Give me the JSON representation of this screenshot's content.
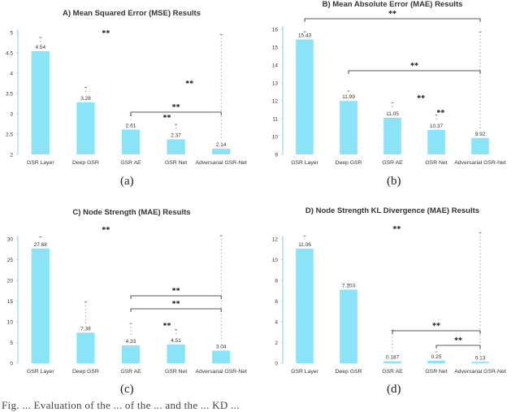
{
  "panel_captions": [
    "(a)",
    "(b)",
    "(c)",
    "(d)"
  ],
  "bottom_text": "Fig. ... Evaluation of the ... of the ... and the ... KD ...",
  "colors": {
    "bar": "#8ae3f7",
    "axis": "#7dd6f1",
    "text": "#333333",
    "errorbar": "#777777"
  },
  "chart_data": [
    {
      "type": "bar",
      "title": "A) Mean Squared Error (MSE) Results",
      "categories": [
        "GSR Layer",
        "Deep GSR",
        "GSR AE",
        "GSR Net",
        "Adversarial GSR-Net"
      ],
      "values": [
        4.54,
        3.28,
        2.61,
        2.37,
        2.14
      ],
      "value_labels": [
        "4.54",
        "3.28",
        "2.61",
        "2.37",
        "2.14"
      ],
      "ylim": [
        2,
        5
      ],
      "yticks": [
        "2",
        "2.5",
        "3",
        "3.5",
        "4",
        "4.5",
        "5"
      ],
      "error_tops": [
        4.88,
        3.65,
        2.96,
        2.74,
        4.95
      ],
      "significance": [
        {
          "label": "**",
          "from": 2,
          "to": 4,
          "bracket": true
        },
        {
          "label": "**",
          "at": 3.3,
          "bracket": false
        },
        {
          "label": "**",
          "at": 3.8,
          "bracket": false
        },
        {
          "label": "**",
          "at": 1.95,
          "bracket": false
        }
      ]
    },
    {
      "type": "bar",
      "title": "B) Mean Absolute Error (MAE) Results",
      "categories": [
        "GSR Layer",
        "Deep GSR",
        "GSR AE",
        "GSR Net",
        "Adversarial GSR-Net"
      ],
      "values": [
        15.43,
        11.99,
        11.05,
        10.37,
        9.92
      ],
      "value_labels": [
        "15.43",
        "11.99",
        "11.05",
        "10.37",
        "9.92"
      ],
      "ylim": [
        9,
        16
      ],
      "yticks": [
        "9",
        "10",
        "11",
        "12",
        "13",
        "14",
        "15",
        "16"
      ],
      "error_tops": [
        15.85,
        12.55,
        11.9,
        11.2,
        15.85
      ],
      "significance": [
        {
          "label": "**",
          "from": 0,
          "to": 4,
          "bracket": true
        },
        {
          "label": "**",
          "from": 1,
          "to": 4,
          "bracket": true
        },
        {
          "label": "**",
          "at": 3.15,
          "bracket": false
        },
        {
          "label": "**",
          "at": 3.6,
          "bracket": false
        }
      ]
    },
    {
      "type": "bar",
      "title": "C) Node Strength (MAE) Results",
      "categories": [
        "GSR Layer",
        "Deep GSR",
        "GSR AE",
        "GSR Net",
        "Adversarial GSR-Net"
      ],
      "values": [
        27.68,
        7.38,
        4.33,
        4.51,
        3.04
      ],
      "value_labels": [
        "27.68",
        "7.38",
        "4.33",
        "4.51",
        "3.04"
      ],
      "ylim": [
        0,
        30
      ],
      "yticks": [
        "0",
        "5",
        "10",
        "15",
        "20",
        "25",
        "30"
      ],
      "error_tops": [
        30.5,
        14.8,
        9.6,
        8.1,
        30.8
      ],
      "significance": [
        {
          "label": "**",
          "from": 2,
          "to": 4,
          "bracket": true
        },
        {
          "label": "**",
          "from": 2,
          "to": 4,
          "bracket": true
        },
        {
          "label": "**",
          "at": 3.3,
          "bracket": false
        },
        {
          "label": "**",
          "at": 1.95,
          "bracket": false
        }
      ]
    },
    {
      "type": "bar",
      "title": "D) Node Strength KL Divergence (MAE) Results",
      "categories": [
        "GSR Layer",
        "Deep GSR",
        "GSR AE",
        "GSR Net",
        "Adversarial GSR-Net"
      ],
      "values": [
        11.06,
        7.103,
        0.187,
        0.25,
        0.13
      ],
      "value_labels": [
        "11.06",
        "7.103",
        "0.187",
        "0.25",
        "0.13"
      ],
      "ylim": [
        0,
        12
      ],
      "yticks": [
        "0",
        "2",
        "4",
        "6",
        "8",
        "10",
        "12"
      ],
      "error_tops": [
        12.3,
        7.6,
        3.2,
        1.1,
        12.6
      ],
      "significance": [
        {
          "label": "**",
          "from": 2,
          "to": 4,
          "bracket": true
        },
        {
          "label": "**",
          "from": 3,
          "to": 4,
          "bracket": true
        },
        {
          "label": "**",
          "at": 2.6,
          "bracket": false
        }
      ]
    }
  ]
}
